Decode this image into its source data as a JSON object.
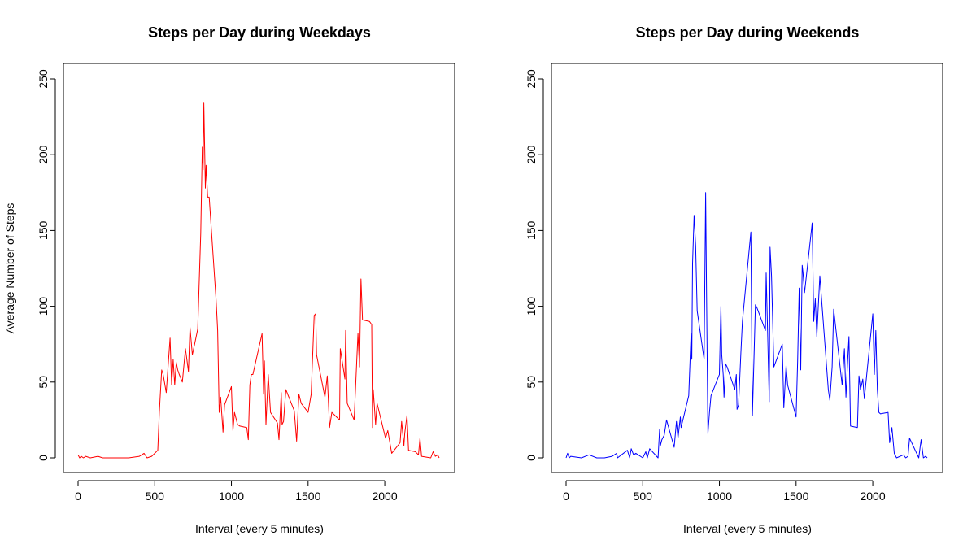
{
  "chart_data": [
    {
      "type": "line",
      "title": "Steps per Day during Weekdays",
      "xlabel": "Interval (every 5 minutes)",
      "ylabel": "Average Number of Steps",
      "xlim": [
        0,
        2355
      ],
      "ylim": [
        0,
        250
      ],
      "xticks": [
        "0",
        "500",
        "1000",
        "1500",
        "2000"
      ],
      "yticks": [
        "0",
        "50",
        "100",
        "150",
        "200",
        "250"
      ],
      "grid": false,
      "legend": "none",
      "series": [
        {
          "color": "#ff0000",
          "x": [
            0,
            10,
            20,
            35,
            50,
            80,
            130,
            160,
            250,
            330,
            400,
            430,
            450,
            480,
            500,
            520,
            530,
            545,
            555,
            575,
            600,
            610,
            620,
            630,
            640,
            650,
            660,
            680,
            700,
            720,
            730,
            745,
            760,
            780,
            800,
            810,
            815,
            820,
            830,
            835,
            845,
            855,
            900,
            910,
            920,
            930,
            945,
            955,
            1000,
            1010,
            1020,
            1040,
            1055,
            1100,
            1110,
            1120,
            1130,
            1140,
            1200,
            1210,
            1215,
            1225,
            1240,
            1255,
            1300,
            1310,
            1325,
            1330,
            1340,
            1350,
            1355,
            1410,
            1425,
            1440,
            1455,
            1500,
            1520,
            1540,
            1550,
            1555,
            1610,
            1625,
            1640,
            1655,
            1705,
            1710,
            1740,
            1745,
            1755,
            1800,
            1825,
            1835,
            1845,
            1855,
            1900,
            1915,
            1920,
            1925,
            1940,
            1950,
            2005,
            2020,
            2045,
            2100,
            2110,
            2125,
            2130,
            2145,
            2155,
            2200,
            2220,
            2230,
            2240,
            2300,
            2315,
            2330,
            2345,
            2355
          ],
          "values": [
            2,
            0,
            1,
            0,
            1,
            0,
            1,
            0,
            0,
            0,
            1,
            3,
            0,
            1,
            3,
            5,
            30,
            58,
            55,
            43,
            79,
            48,
            65,
            48,
            63,
            58,
            55,
            50,
            72,
            57,
            86,
            68,
            75,
            85,
            148,
            205,
            190,
            234,
            178,
            193,
            172,
            172,
            104,
            84,
            30,
            40,
            17,
            35,
            47,
            18,
            30,
            22,
            21,
            20,
            12,
            48,
            55,
            55,
            82,
            42,
            64,
            22,
            55,
            30,
            23,
            12,
            43,
            22,
            24,
            38,
            45,
            31,
            11,
            42,
            36,
            30,
            42,
            94,
            95,
            68,
            40,
            54,
            20,
            30,
            25,
            72,
            52,
            84,
            36,
            25,
            82,
            60,
            118,
            91,
            90,
            88,
            20,
            45,
            22,
            36,
            13,
            18,
            3,
            10,
            24,
            8,
            16,
            28,
            5,
            4,
            2,
            13,
            1,
            0,
            4,
            1,
            2,
            0
          ]
        }
      ]
    },
    {
      "type": "line",
      "title": "Steps per Day during Weekends",
      "xlabel": "Interval (every 5 minutes)",
      "ylabel": "",
      "xlim": [
        0,
        2355
      ],
      "ylim": [
        0,
        250
      ],
      "xticks": [
        "0",
        "500",
        "1000",
        "1500",
        "2000"
      ],
      "yticks": [
        "0",
        "50",
        "100",
        "150",
        "200",
        "250"
      ],
      "grid": false,
      "legend": "none",
      "series": [
        {
          "color": "#0000ff",
          "x": [
            0,
            10,
            20,
            30,
            100,
            150,
            200,
            250,
            300,
            330,
            335,
            400,
            415,
            425,
            440,
            455,
            500,
            520,
            530,
            545,
            600,
            610,
            615,
            625,
            640,
            655,
            705,
            720,
            730,
            745,
            750,
            800,
            815,
            820,
            825,
            835,
            845,
            855,
            900,
            910,
            915,
            925,
            935,
            945,
            1000,
            1010,
            1015,
            1025,
            1030,
            1040,
            1050,
            1100,
            1110,
            1115,
            1125,
            1140,
            1150,
            1205,
            1215,
            1225,
            1235,
            1245,
            1300,
            1305,
            1315,
            1325,
            1330,
            1340,
            1355,
            1410,
            1420,
            1435,
            1445,
            1500,
            1510,
            1520,
            1530,
            1540,
            1545,
            1555,
            1605,
            1615,
            1625,
            1635,
            1645,
            1655,
            1710,
            1720,
            1735,
            1745,
            1800,
            1815,
            1825,
            1835,
            1845,
            1855,
            1900,
            1910,
            1920,
            1935,
            1945,
            2000,
            2010,
            2020,
            2030,
            2040,
            2050,
            2100,
            2110,
            2125,
            2140,
            2155,
            2200,
            2215,
            2230,
            2240,
            2300,
            2315,
            2330,
            2345,
            2355
          ],
          "values": [
            0,
            3,
            0,
            1,
            0,
            2,
            0,
            0,
            1,
            3,
            0,
            5,
            0,
            6,
            2,
            3,
            0,
            4,
            0,
            6,
            0,
            19,
            8,
            12,
            15,
            25,
            7,
            24,
            13,
            27,
            20,
            41,
            82,
            65,
            128,
            160,
            140,
            97,
            65,
            175,
            120,
            16,
            30,
            41,
            55,
            100,
            68,
            55,
            40,
            62,
            60,
            45,
            55,
            32,
            35,
            69,
            90,
            149,
            28,
            65,
            101,
            99,
            84,
            122,
            80,
            37,
            139,
            120,
            60,
            75,
            33,
            61,
            48,
            27,
            64,
            112,
            58,
            127,
            122,
            109,
            155,
            90,
            105,
            80,
            100,
            120,
            45,
            38,
            60,
            98,
            48,
            72,
            40,
            62,
            80,
            21,
            20,
            54,
            45,
            52,
            39,
            95,
            55,
            84,
            45,
            30,
            29,
            30,
            10,
            20,
            3,
            0,
            2,
            0,
            1,
            13,
            0,
            12,
            0,
            1,
            0
          ]
        }
      ]
    }
  ]
}
